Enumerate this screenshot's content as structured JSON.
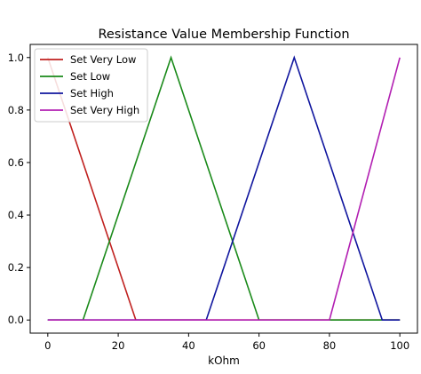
{
  "chart_data": {
    "type": "line",
    "title": "Resistance Value Membership Function",
    "xlabel": "kOhm",
    "ylabel": "",
    "xlim": [
      -5,
      105
    ],
    "ylim": [
      -0.05,
      1.05
    ],
    "xticks": [
      0,
      20,
      40,
      60,
      80,
      100
    ],
    "yticks": [
      0.0,
      0.2,
      0.4,
      0.6,
      0.8,
      1.0
    ],
    "xtick_labels": [
      "0",
      "20",
      "40",
      "60",
      "80",
      "100"
    ],
    "ytick_labels": [
      "0.0",
      "0.2",
      "0.4",
      "0.6",
      "0.8",
      "1.0"
    ],
    "grid": false,
    "legend_position": "top-left",
    "series": [
      {
        "name": "Set Very Low",
        "color": "#c0211f",
        "x": [
          0,
          25,
          100
        ],
        "y": [
          1.0,
          0.0,
          0.0
        ]
      },
      {
        "name": "Set Low",
        "color": "#1a8a1a",
        "x": [
          0,
          10,
          35,
          60,
          100
        ],
        "y": [
          0.0,
          0.0,
          1.0,
          0.0,
          0.0
        ]
      },
      {
        "name": "Set High",
        "color": "#10169e",
        "x": [
          0,
          45,
          70,
          95,
          100
        ],
        "y": [
          0.0,
          0.0,
          1.0,
          0.0,
          0.0
        ]
      },
      {
        "name": "Set Very High",
        "color": "#b21fb2",
        "x": [
          0,
          80,
          100
        ],
        "y": [
          0.0,
          0.0,
          1.0
        ]
      }
    ]
  }
}
